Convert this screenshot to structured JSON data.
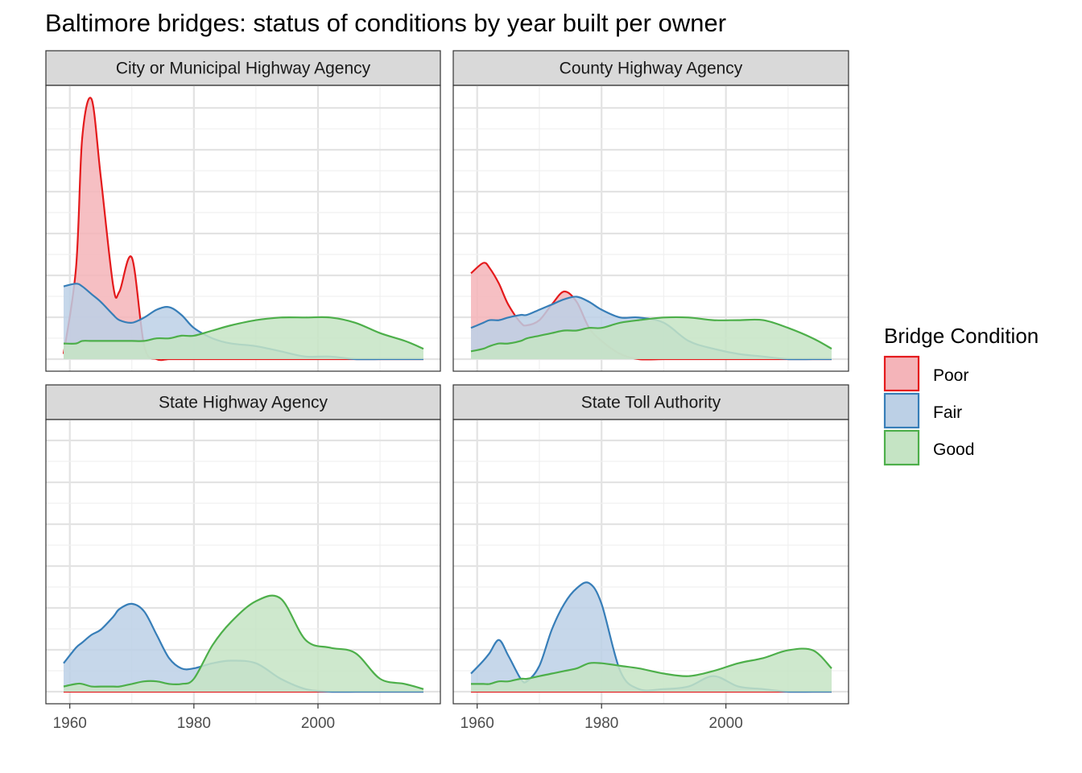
{
  "chart_data": {
    "type": "area",
    "title": "Baltimore bridges: status of conditions by year built per owner",
    "xlabel": "",
    "ylabel": "",
    "xlim": [
      1957,
      2019
    ],
    "x_ticks": [
      1960,
      1980,
      2000
    ],
    "grid": true,
    "legend": {
      "title": "Bridge Condition",
      "placement": "right",
      "entries": [
        {
          "name": "Poor",
          "line": "#e41a1c",
          "fill": "#f4b4b9"
        },
        {
          "name": "Fair",
          "line": "#377eb8",
          "fill": "#bcd0e6"
        },
        {
          "name": "Good",
          "line": "#4daf4a",
          "fill": "#c5e4c4"
        }
      ]
    },
    "x": [
      1959,
      1961,
      1962,
      1963.5,
      1965,
      1967,
      1968,
      1970,
      1972,
      1974,
      1976,
      1978,
      1980,
      1983,
      1986,
      1990,
      1994,
      1998,
      2002,
      2006,
      2010,
      2014,
      2017
    ],
    "facets": [
      {
        "name": "City or Municipal Highway Agency",
        "series": [
          {
            "name": "Poor",
            "values": [
              0.02,
              0.35,
              0.85,
              1.0,
              0.7,
              0.28,
              0.26,
              0.39,
              0.05,
              0.0,
              0.0,
              0.0,
              0.0,
              0.0,
              0.0,
              0.0,
              0.0,
              0.0,
              0.0,
              0.0,
              0.0,
              0.0,
              0.0
            ]
          },
          {
            "name": "Fair",
            "values": [
              0.28,
              0.29,
              0.28,
              0.25,
              0.22,
              0.17,
              0.15,
              0.14,
              0.16,
              0.19,
              0.2,
              0.17,
              0.12,
              0.08,
              0.06,
              0.05,
              0.03,
              0.01,
              0.01,
              0.0,
              0.0,
              0.0,
              0.0
            ]
          },
          {
            "name": "Good",
            "values": [
              0.06,
              0.06,
              0.07,
              0.07,
              0.07,
              0.07,
              0.07,
              0.07,
              0.07,
              0.08,
              0.08,
              0.09,
              0.09,
              0.11,
              0.13,
              0.15,
              0.16,
              0.16,
              0.16,
              0.14,
              0.1,
              0.07,
              0.04
            ]
          }
        ]
      },
      {
        "name": "County Highway Agency",
        "series": [
          {
            "name": "Poor",
            "values": [
              0.33,
              0.37,
              0.35,
              0.29,
              0.21,
              0.14,
              0.13,
              0.15,
              0.21,
              0.26,
              0.22,
              0.12,
              0.07,
              0.02,
              0.0,
              0.0,
              0.0,
              0.0,
              0.0,
              0.0,
              0.0,
              0.0,
              0.0
            ]
          },
          {
            "name": "Fair",
            "values": [
              0.12,
              0.14,
              0.15,
              0.15,
              0.16,
              0.17,
              0.17,
              0.19,
              0.21,
              0.23,
              0.24,
              0.22,
              0.19,
              0.16,
              0.16,
              0.14,
              0.07,
              0.04,
              0.02,
              0.01,
              0.0,
              0.0,
              0.0
            ]
          },
          {
            "name": "Good",
            "values": [
              0.03,
              0.04,
              0.05,
              0.06,
              0.06,
              0.07,
              0.08,
              0.09,
              0.1,
              0.11,
              0.11,
              0.12,
              0.12,
              0.14,
              0.15,
              0.16,
              0.16,
              0.15,
              0.15,
              0.15,
              0.12,
              0.08,
              0.04
            ]
          }
        ]
      },
      {
        "name": "State Highway Agency",
        "series": [
          {
            "name": "Poor",
            "values": [
              0.0,
              0.0,
              0.0,
              0.0,
              0.0,
              0.0,
              0.0,
              0.0,
              0.0,
              0.0,
              0.0,
              0.0,
              0.0,
              0.0,
              0.0,
              0.0,
              0.0,
              0.0,
              0.0,
              0.0,
              0.0,
              0.0,
              0.0
            ]
          },
          {
            "name": "Fair",
            "values": [
              0.11,
              0.17,
              0.19,
              0.22,
              0.24,
              0.29,
              0.32,
              0.34,
              0.31,
              0.22,
              0.13,
              0.09,
              0.09,
              0.11,
              0.12,
              0.11,
              0.05,
              0.01,
              0.0,
              0.0,
              0.0,
              0.0,
              0.0
            ]
          },
          {
            "name": "Good",
            "values": [
              0.02,
              0.03,
              0.03,
              0.02,
              0.02,
              0.02,
              0.02,
              0.03,
              0.04,
              0.04,
              0.03,
              0.03,
              0.05,
              0.18,
              0.27,
              0.35,
              0.36,
              0.2,
              0.17,
              0.15,
              0.05,
              0.03,
              0.01
            ]
          }
        ]
      },
      {
        "name": "State Toll Authority",
        "series": [
          {
            "name": "Poor",
            "values": [
              0.0,
              0.0,
              0.0,
              0.0,
              0.0,
              0.0,
              0.0,
              0.0,
              0.0,
              0.0,
              0.0,
              0.0,
              0.0,
              0.0,
              0.0,
              0.0,
              0.0,
              0.0,
              0.0,
              0.0,
              0.0,
              0.0,
              0.0
            ]
          },
          {
            "name": "Fair",
            "values": [
              0.07,
              0.12,
              0.15,
              0.2,
              0.14,
              0.05,
              0.04,
              0.1,
              0.24,
              0.34,
              0.4,
              0.42,
              0.34,
              0.08,
              0.01,
              0.01,
              0.02,
              0.06,
              0.02,
              0.01,
              0.0,
              0.0,
              0.0
            ]
          },
          {
            "name": "Good",
            "values": [
              0.03,
              0.03,
              0.03,
              0.04,
              0.04,
              0.05,
              0.05,
              0.06,
              0.07,
              0.08,
              0.09,
              0.11,
              0.11,
              0.1,
              0.09,
              0.07,
              0.06,
              0.08,
              0.11,
              0.13,
              0.16,
              0.16,
              0.09
            ]
          }
        ]
      }
    ]
  }
}
